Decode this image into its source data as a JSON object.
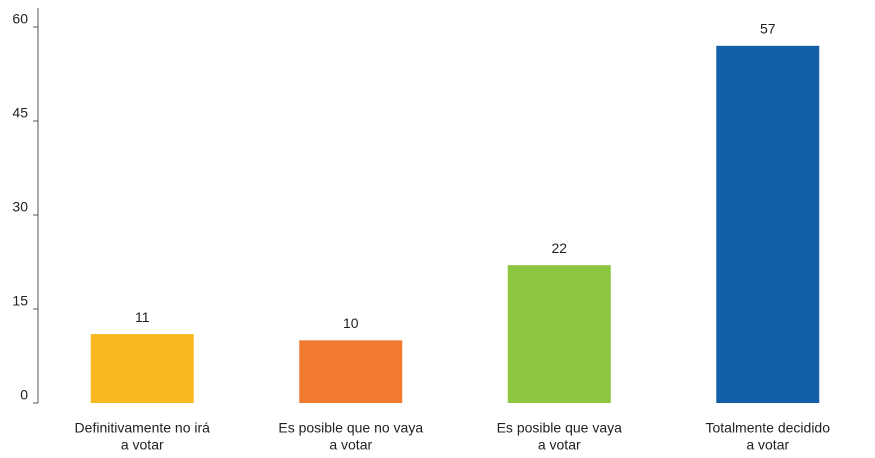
{
  "chart_data": {
    "type": "bar",
    "categories": [
      [
        "Definitivamente no irá",
        "a votar"
      ],
      [
        "Es posible que no vaya",
        "a votar"
      ],
      [
        "Es posible que vaya",
        "a votar"
      ],
      [
        "Totalmente decidido",
        "a votar"
      ]
    ],
    "values": [
      11,
      10,
      22,
      57
    ],
    "colors": [
      "#f8b81f",
      "#f07a2e",
      "#8cc63f",
      "#1360a9"
    ],
    "ylim": [
      0,
      60
    ],
    "yticks": [
      0,
      15,
      30,
      45,
      60
    ],
    "grid": false
  }
}
